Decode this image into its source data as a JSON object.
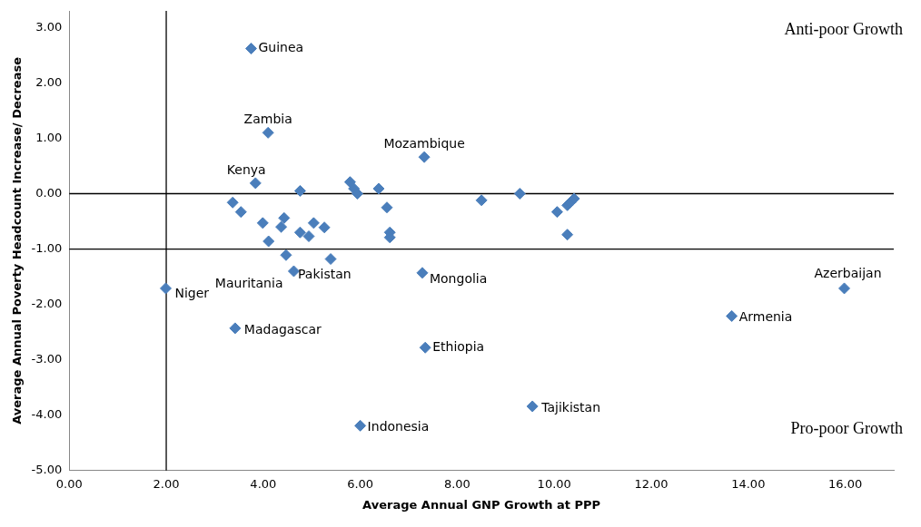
{
  "chart_data": {
    "type": "scatter",
    "xlabel": "Average Annual GNP Growth at PPP",
    "ylabel": "Average Annual Poverty Headcount Increase/ Decrease",
    "x": [
      3.75,
      4.1,
      3.84,
      7.32,
      1.99,
      3.42,
      7.34,
      9.55,
      6.0,
      13.66,
      15.98,
      4.63,
      5.39,
      7.28,
      4.76,
      5.79,
      5.87,
      5.94,
      6.38,
      6.55,
      6.61,
      6.61,
      8.5,
      9.29,
      10.06,
      10.27,
      10.33,
      10.41,
      10.27,
      3.37,
      3.54,
      3.99,
      4.11,
      4.43,
      4.37,
      4.47,
      4.76,
      4.94,
      5.04,
      5.26
    ],
    "values": [
      2.62,
      1.1,
      0.19,
      0.66,
      -1.71,
      -2.43,
      -2.78,
      -3.84,
      -4.19,
      -2.21,
      -1.71,
      -1.4,
      -1.18,
      -1.43,
      0.05,
      0.21,
      0.09,
      0.0,
      0.09,
      -0.25,
      -0.7,
      -0.79,
      -0.12,
      0.0,
      -0.33,
      -0.21,
      -0.16,
      -0.09,
      -0.74,
      -0.16,
      -0.33,
      -0.53,
      -0.86,
      -0.44,
      -0.6,
      -1.11,
      -0.7,
      -0.77,
      -0.53,
      -0.61
    ],
    "color": "#4a7ebb",
    "marker": "diamond",
    "xlim": [
      0,
      17
    ],
    "ylim": [
      -5,
      3.3
    ],
    "xticks": [
      {
        "value": 0,
        "label": "0.00"
      },
      {
        "value": 2,
        "label": "2.00"
      },
      {
        "value": 4,
        "label": "4.00"
      },
      {
        "value": 6,
        "label": "6.00"
      },
      {
        "value": 8,
        "label": "8.00"
      },
      {
        "value": 10,
        "label": "10.00"
      },
      {
        "value": 12,
        "label": "12.00"
      },
      {
        "value": 14,
        "label": "14.00"
      },
      {
        "value": 16,
        "label": "16.00"
      }
    ],
    "yticks": [
      {
        "value": -5,
        "label": "-5.00"
      },
      {
        "value": -4,
        "label": "-4.00"
      },
      {
        "value": -3,
        "label": "-3.00"
      },
      {
        "value": -2,
        "label": "-2.00"
      },
      {
        "value": -1,
        "label": "-1.00"
      },
      {
        "value": 0,
        "label": "0.00"
      },
      {
        "value": 1,
        "label": "1.00"
      },
      {
        "value": 2,
        "label": "2.00"
      },
      {
        "value": 3,
        "label": "3.00"
      }
    ],
    "ref_lines": [
      {
        "axis": "y",
        "value": 0,
        "color": "#000000"
      },
      {
        "axis": "y",
        "value": -1,
        "color": "#000000"
      },
      {
        "axis": "x",
        "value": 2,
        "color": "#000000"
      }
    ],
    "annotations": [
      {
        "text": "Guinea",
        "x": 3.75,
        "y": 2.62
      },
      {
        "text": "Zambia",
        "x": 4.1,
        "y": 1.1
      },
      {
        "text": "Kenya",
        "x": 3.84,
        "y": 0.19
      },
      {
        "text": "Mozambique",
        "x": 7.32,
        "y": 0.66
      },
      {
        "text": "Niger",
        "x": 1.99,
        "y": -1.71
      },
      {
        "text": "Madagascar",
        "x": 3.42,
        "y": -2.43
      },
      {
        "text": "Ethiopia",
        "x": 7.34,
        "y": -2.78
      },
      {
        "text": "Tajikistan",
        "x": 9.55,
        "y": -3.84
      },
      {
        "text": "Indonesia",
        "x": 6.0,
        "y": -4.19
      },
      {
        "text": "Armenia",
        "x": 13.66,
        "y": -2.21
      },
      {
        "text": "Azerbaijan",
        "x": 15.98,
        "y": -1.71
      },
      {
        "text": "Mauritania",
        "x": 4.63,
        "y": -1.4
      },
      {
        "text": "Pakistan",
        "x": 5.39,
        "y": -1.18
      },
      {
        "text": "Mongolia",
        "x": 7.28,
        "y": -1.43
      },
      "Anti-poor Growth",
      "Pro-poor Growth"
    ]
  }
}
